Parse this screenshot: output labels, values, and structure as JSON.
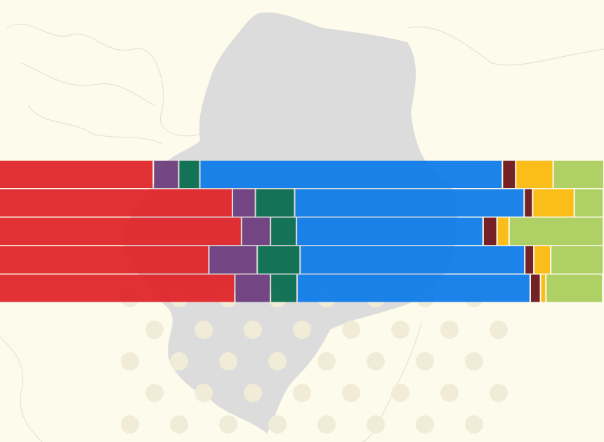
{
  "chart_data": {
    "type": "stacked_bar_horizontal",
    "categories": [
      null,
      null,
      null,
      null,
      null
    ],
    "xlim": [
      0,
      100
    ],
    "series": [
      {
        "color": "#e02127",
        "values": [
          25.5,
          38.6,
          40.1,
          34.7,
          39.0
        ]
      },
      {
        "color": "#6b3a7c",
        "values": [
          4.2,
          3.8,
          4.8,
          8.0,
          5.9
        ]
      },
      {
        "color": "#046b4b",
        "values": [
          3.5,
          6.5,
          4.3,
          7.1,
          4.4
        ]
      },
      {
        "color": "#0a7ae8",
        "values": [
          50.1,
          38.0,
          30.9,
          37.2,
          38.6
        ]
      },
      {
        "color": "#6a1118",
        "values": [
          2.2,
          1.4,
          2.3,
          1.5,
          1.7
        ]
      },
      {
        "color": "#fbb80a",
        "values": [
          6.2,
          6.9,
          2.0,
          2.8,
          0.9
        ]
      },
      {
        "color": "#a8cc5a",
        "values": [
          8.4,
          4.8,
          15.6,
          8.7,
          9.4
        ]
      }
    ]
  }
}
